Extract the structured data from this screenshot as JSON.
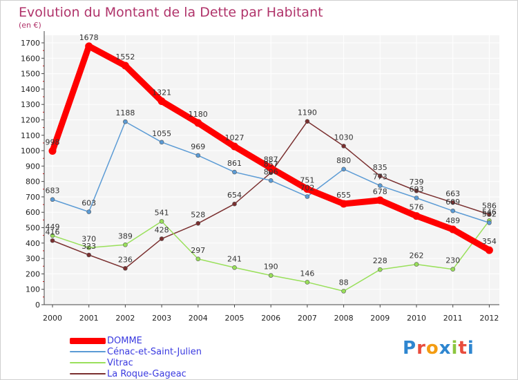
{
  "title": "Evolution du Montant de la Dette par Habitant",
  "unit": "(en €)",
  "brand": {
    "letters": [
      "P",
      "r",
      "o",
      "x",
      "i",
      "t",
      "i"
    ],
    "colors": [
      "#2e86d0",
      "#e84c3d",
      "#f39c12",
      "#2e86d0",
      "#8cc63f",
      "#e84c3d",
      "#2e86d0"
    ]
  },
  "chart_data": {
    "type": "line",
    "x": [
      "2000",
      "2001",
      "2002",
      "2003",
      "2004",
      "2005",
      "2006",
      "2007",
      "2008",
      "2009",
      "2010",
      "2011",
      "2012"
    ],
    "ylim": [
      0,
      1700
    ],
    "yticks": [
      0,
      100,
      200,
      300,
      400,
      500,
      600,
      700,
      800,
      900,
      1000,
      1100,
      1200,
      1300,
      1400,
      1500,
      1600,
      1700
    ],
    "grid": true,
    "legend_position": "bottom-left",
    "series": [
      {
        "name": "DOMME",
        "color": "#ff0000",
        "width": 9,
        "values": [
          998,
          1678,
          1552,
          1321,
          1180,
          1027,
          887,
          751,
          655,
          678,
          576,
          489,
          354
        ]
      },
      {
        "name": "Cénac-et-Saint-Julien",
        "color": "#5b9bd5",
        "width": 1.5,
        "values": [
          683,
          603,
          1188,
          1055,
          969,
          861,
          806,
          702,
          880,
          773,
          693,
          609,
          532
        ]
      },
      {
        "name": "Vitrac",
        "color": "#99e05a",
        "width": 1.5,
        "values": [
          449,
          370,
          389,
          541,
          297,
          241,
          190,
          146,
          88,
          228,
          262,
          230,
          546
        ]
      },
      {
        "name": "La Roque-Gageac",
        "color": "#7a2f2f",
        "width": 1.5,
        "values": [
          416,
          323,
          236,
          428,
          528,
          654,
          857,
          1190,
          1030,
          835,
          739,
          663,
          586
        ]
      }
    ]
  }
}
